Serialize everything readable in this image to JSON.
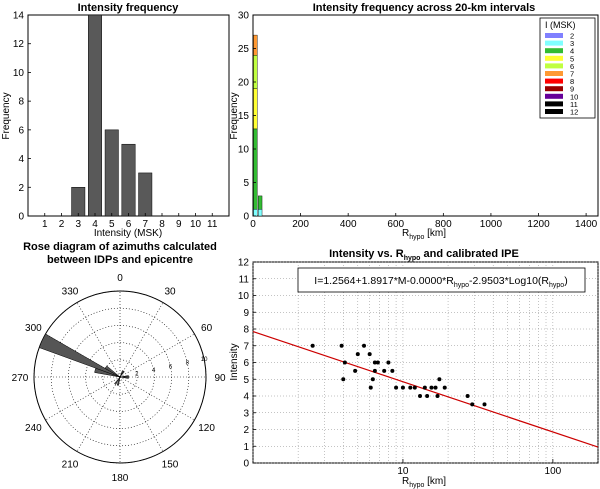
{
  "chart_data": [
    {
      "id": "hist",
      "type": "bar",
      "title": "Intensity frequency",
      "xlabel": "Intensity (MSK)",
      "ylabel": "Frequency",
      "categories": [
        1,
        2,
        3,
        4,
        5,
        6,
        7,
        8,
        9,
        10,
        11
      ],
      "values": [
        0,
        0,
        2,
        14,
        6,
        5,
        3,
        0,
        0,
        0,
        0
      ],
      "xticks": [
        "1",
        "2",
        "3",
        "4",
        "5",
        "6",
        "7",
        "8",
        "9",
        "10",
        "11"
      ],
      "yticks": [
        "0",
        "2",
        "4",
        "6",
        "8",
        "10",
        "12",
        "14"
      ],
      "xlim": [
        0,
        12
      ],
      "ylim": [
        0,
        14
      ],
      "bar_color": "#595959"
    },
    {
      "id": "stacked",
      "type": "bar",
      "title": "Intensity frequency across 20-km intervals",
      "xlabel_main": "R",
      "xlabel_sub": "hypo",
      "xlabel_unit": " [km]",
      "ylabel": "Frequency",
      "xlim": [
        0,
        1450
      ],
      "ylim": [
        0,
        30
      ],
      "xticks": [
        "0",
        "200",
        "400",
        "600",
        "800",
        "1000",
        "1200",
        "1400"
      ],
      "yticks": [
        "0",
        "5",
        "10",
        "15",
        "20",
        "25",
        "30"
      ],
      "bin_width_km": 20,
      "legend_title": "I (MSK)",
      "legend_position": "top-right",
      "legend": [
        {
          "label": "2",
          "color": "#8080ff"
        },
        {
          "label": "3",
          "color": "#80ffff"
        },
        {
          "label": "4",
          "color": "#33bb33"
        },
        {
          "label": "5",
          "color": "#ffff33"
        },
        {
          "label": "6",
          "color": "#c0ff40"
        },
        {
          "label": "7",
          "color": "#ff9933"
        },
        {
          "label": "8",
          "color": "#ff0000"
        },
        {
          "label": "9",
          "color": "#990000"
        },
        {
          "label": "10",
          "color": "#660099"
        },
        {
          "label": "11",
          "color": "#000000"
        },
        {
          "label": "12",
          "color": "#000000"
        }
      ],
      "bins": [
        {
          "x_start": 0,
          "counts": {
            "3": 1,
            "4": 12,
            "5": 6,
            "6": 5,
            "7": 3
          }
        },
        {
          "x_start": 20,
          "counts": {
            "3": 1,
            "4": 2
          }
        }
      ]
    },
    {
      "id": "rose",
      "type": "rose",
      "title_line1": "Rose diagram of azimuths calculated",
      "title_line2": "between  IDPs and epicentre",
      "angle_labels": [
        "0",
        "30",
        "60",
        "90",
        "120",
        "150",
        "180",
        "210",
        "240",
        "270",
        "300",
        "330"
      ],
      "radial_ticks": [
        "2",
        "4",
        "6",
        "8",
        "10"
      ],
      "rmax": 10,
      "sector_width_deg": 10,
      "petals": [
        {
          "azimuth": 285,
          "value": 3
        },
        {
          "azimuth": 295,
          "value": 10
        },
        {
          "azimuth": 305,
          "value": 2
        },
        {
          "azimuth": 85,
          "value": 1
        },
        {
          "azimuth": 95,
          "value": 1
        },
        {
          "azimuth": 215,
          "value": 1
        },
        {
          "azimuth": 195,
          "value": 1
        },
        {
          "azimuth": 25,
          "value": 0.8
        },
        {
          "azimuth": 35,
          "value": 0.8
        }
      ],
      "color": "#555555"
    },
    {
      "id": "ipe",
      "type": "scatter",
      "title_main": "Intensity vs. R",
      "title_sub": "hypo",
      "title_end": " and calibrated IPE",
      "xlabel_main": "R",
      "xlabel_sub": "hypo",
      "xlabel_unit": " [km]",
      "ylabel": "Intensity",
      "x_scale": "log",
      "xlim": [
        1,
        200
      ],
      "ylim": [
        0,
        12
      ],
      "xticks": [
        {
          "v": 10,
          "label": "10"
        },
        {
          "v": 100,
          "label": "100"
        }
      ],
      "yticks": [
        "0",
        "1",
        "2",
        "3",
        "4",
        "5",
        "6",
        "7",
        "8",
        "9",
        "10",
        "11",
        "12"
      ],
      "equation_parts": [
        "I=1.2564+1.8917*M-0.0000*R",
        "hypo",
        "-2.9503*Log10(R",
        "hypo",
        ")"
      ],
      "points": [
        [
          2.5,
          7
        ],
        [
          3.9,
          7
        ],
        [
          4,
          5
        ],
        [
          4.1,
          6
        ],
        [
          4.8,
          5.5
        ],
        [
          5,
          6.5
        ],
        [
          5.5,
          7
        ],
        [
          6,
          6.5
        ],
        [
          6.1,
          4.5
        ],
        [
          6.3,
          5
        ],
        [
          6.5,
          5.5
        ],
        [
          6.5,
          6
        ],
        [
          6.8,
          6
        ],
        [
          7.5,
          5.5
        ],
        [
          8,
          6
        ],
        [
          8.5,
          5.5
        ],
        [
          9,
          4.5
        ],
        [
          10,
          4.5
        ],
        [
          11.2,
          4.5
        ],
        [
          12,
          4.5
        ],
        [
          13,
          4
        ],
        [
          14,
          4.5
        ],
        [
          14.5,
          4
        ],
        [
          15.5,
          4.5
        ],
        [
          16.5,
          4.5
        ],
        [
          17,
          4
        ],
        [
          17.5,
          5
        ],
        [
          19,
          4.5
        ],
        [
          27,
          4
        ],
        [
          29,
          3.5
        ],
        [
          35,
          3.5
        ]
      ],
      "fit_line": [
        [
          1,
          7.85
        ],
        [
          200,
          0.95
        ]
      ],
      "line_color": "#cc0000"
    }
  ]
}
